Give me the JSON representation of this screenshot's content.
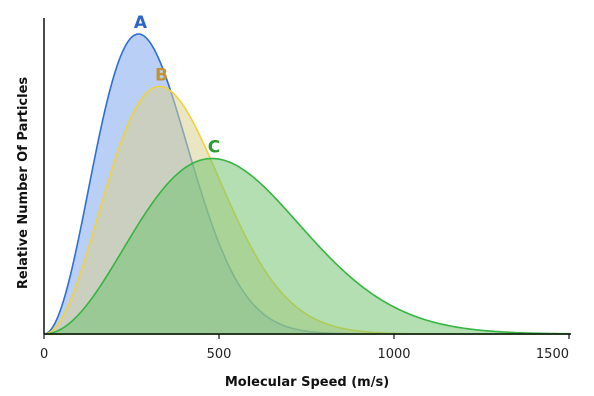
{
  "chart_data": {
    "type": "area",
    "xlabel": "Molecular Speed (m/s)",
    "ylabel": "Relative Number Of Particles",
    "xlim": [
      0,
      1500
    ],
    "ylim": [
      0,
      1.0
    ],
    "x_ticks": [
      "0",
      "500",
      "1000",
      "1500"
    ],
    "grid": false,
    "series": [
      {
        "name": "A",
        "peak_speed": 270,
        "peak_value": 1.0,
        "color": "#2d6fd6",
        "fill": "#7fa8ee",
        "label_color": "#2a63c9"
      },
      {
        "name": "B",
        "peak_speed": 330,
        "peak_value": 0.825,
        "color": "#f2d23a",
        "fill": "#d8cf91",
        "label_color": "#c39330"
      },
      {
        "name": "C",
        "peak_speed": 480,
        "peak_value": 0.585,
        "color": "#35b541",
        "fill": "#74c472",
        "label_color": "#2b9a33"
      }
    ]
  }
}
